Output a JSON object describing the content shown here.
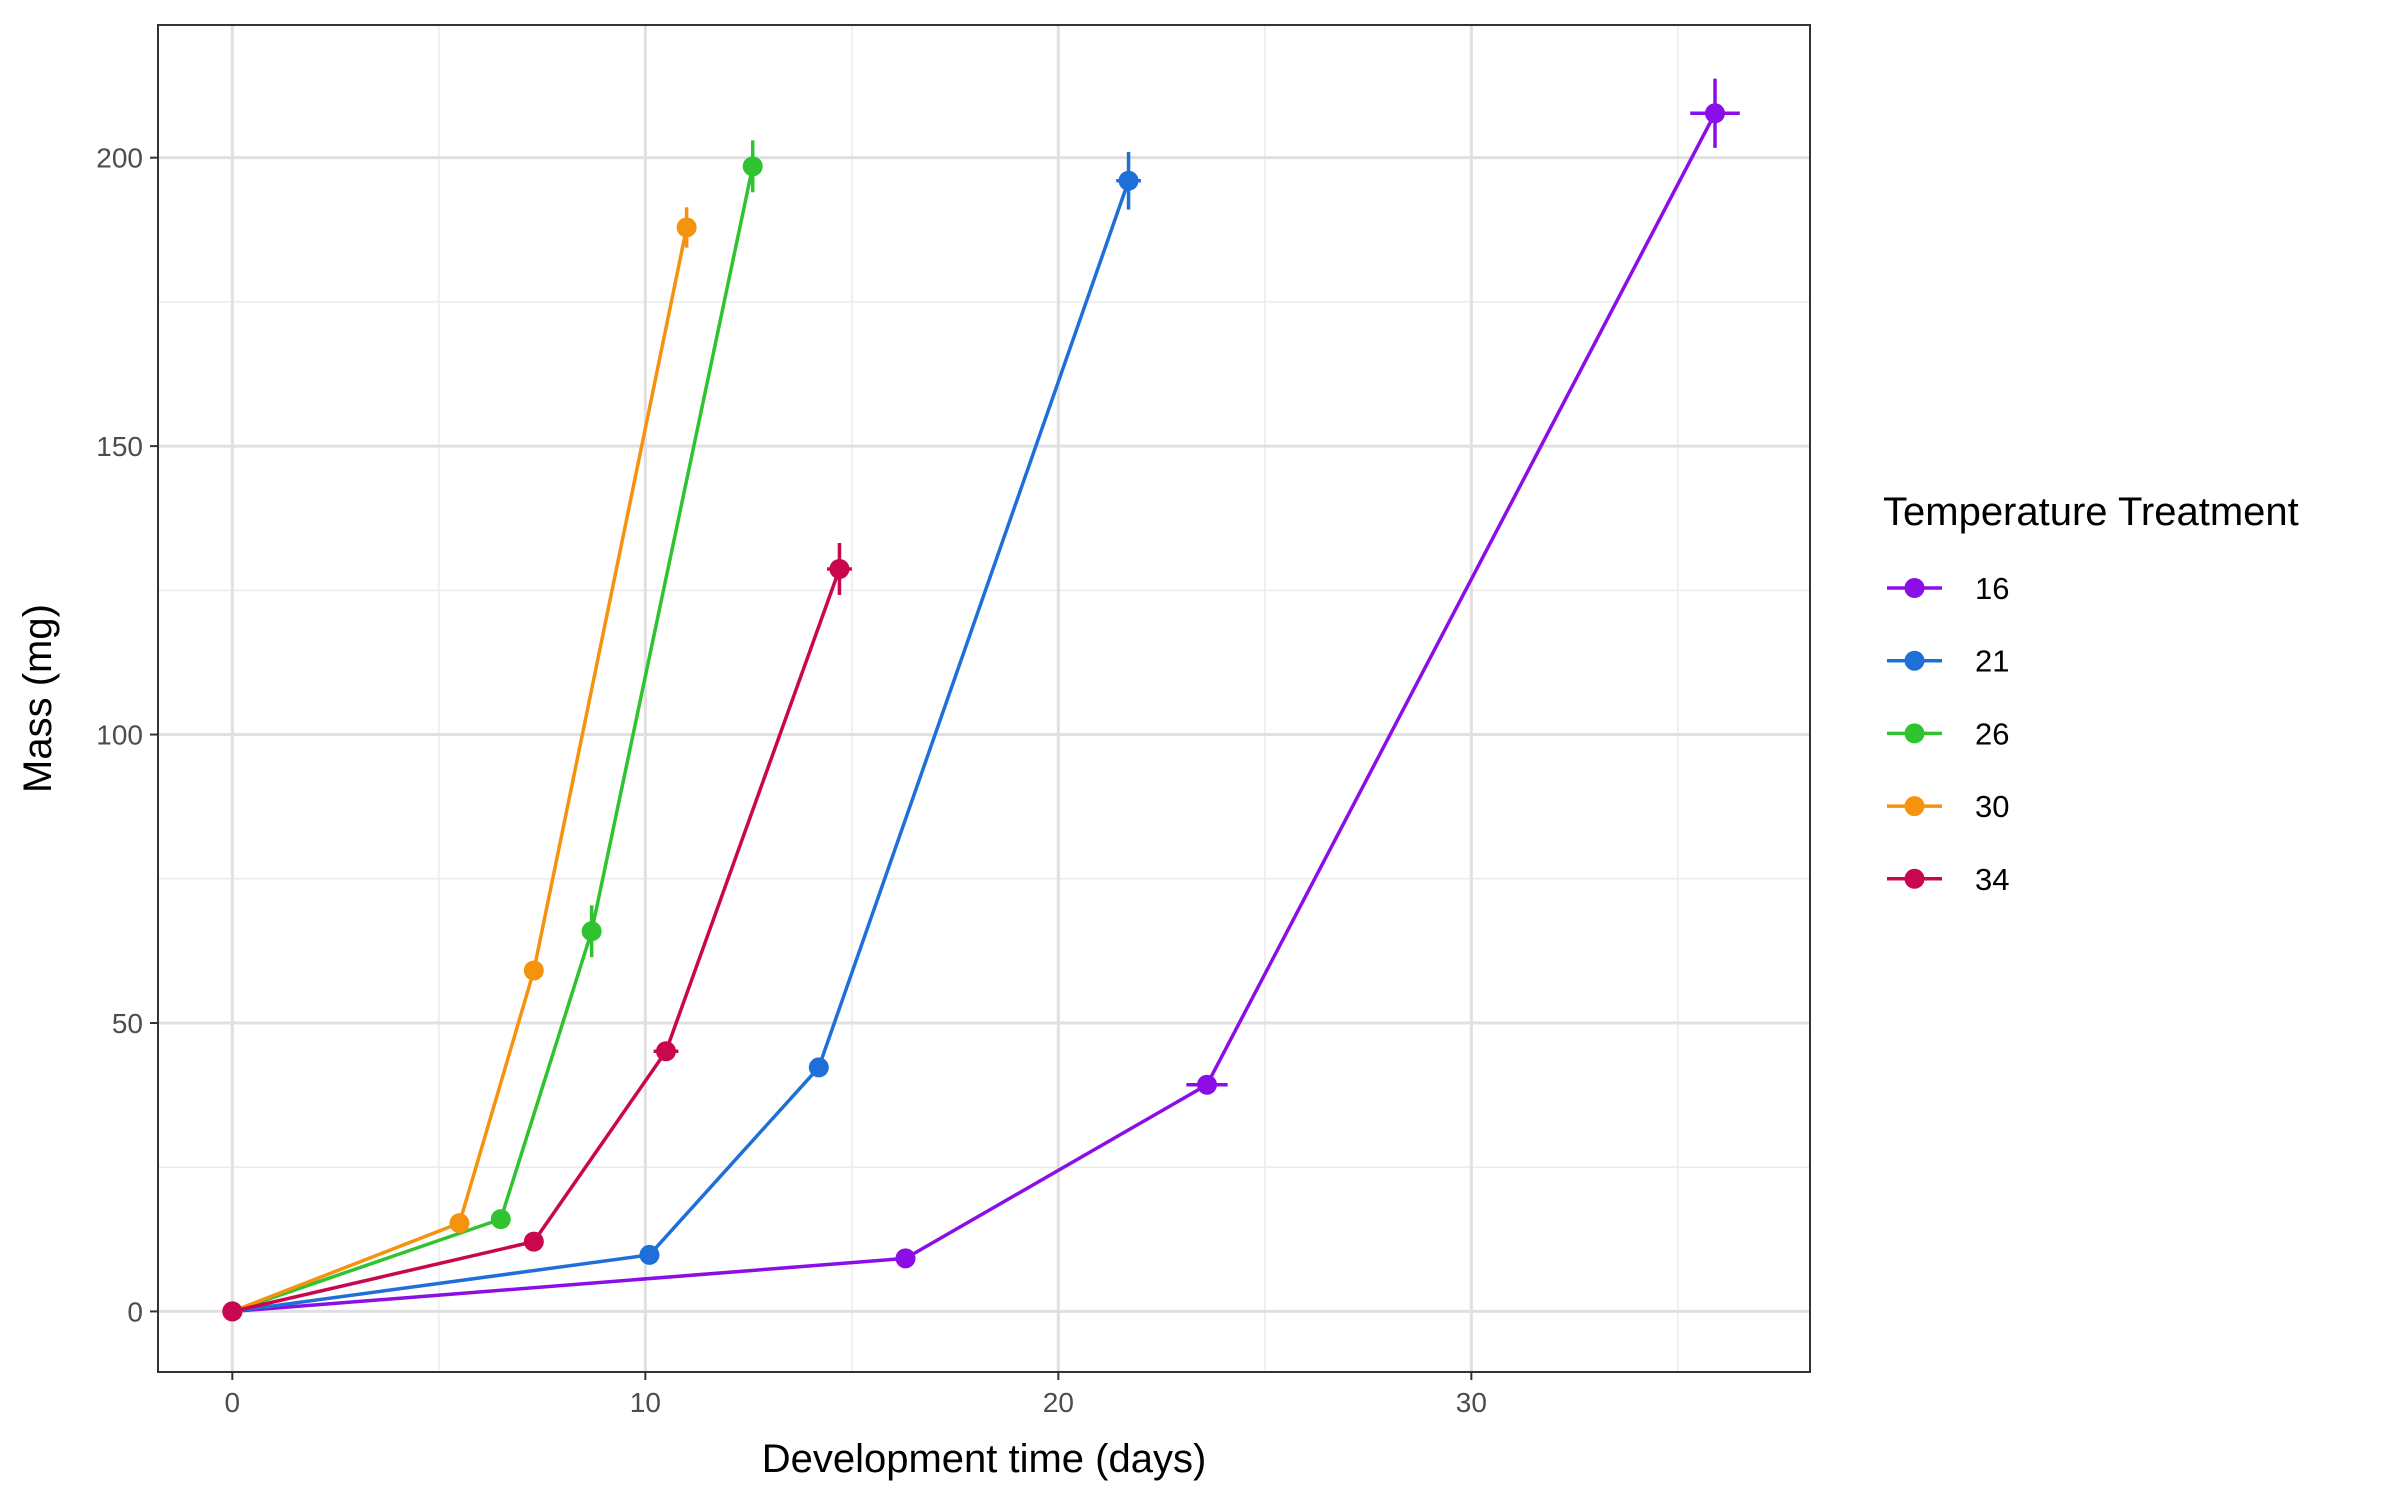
{
  "chart_data": {
    "type": "line",
    "xlabel": "Development time (days)",
    "ylabel": "Mass (mg)",
    "xlim": [
      -1.8,
      38.2
    ],
    "ylim": [
      -10.5,
      223
    ],
    "x_ticks": [
      0,
      10,
      20,
      30
    ],
    "y_ticks": [
      0,
      50,
      100,
      150,
      200
    ],
    "x_minor_ticks": [
      5,
      15,
      25,
      35
    ],
    "y_minor_ticks": [
      25,
      75,
      125,
      175
    ],
    "grid": true,
    "legend": {
      "title": "Temperature Treatment",
      "position": "right"
    },
    "series": [
      {
        "name": "16",
        "color": "#8b0ee6",
        "points": [
          {
            "x": 0,
            "y": 0,
            "xerr": 0,
            "yerr": 0
          },
          {
            "x": 16.3,
            "y": 9.2,
            "xerr": 0.2,
            "yerr": 0.6
          },
          {
            "x": 23.6,
            "y": 39.3,
            "xerr": 0.5,
            "yerr": 1.5
          },
          {
            "x": 35.9,
            "y": 207.7,
            "xerr": 0.6,
            "yerr": 6.0
          }
        ]
      },
      {
        "name": "21",
        "color": "#1f6fd9",
        "points": [
          {
            "x": 0,
            "y": 0,
            "xerr": 0,
            "yerr": 0
          },
          {
            "x": 10.1,
            "y": 9.8,
            "xerr": 0.1,
            "yerr": 0.5
          },
          {
            "x": 14.2,
            "y": 42.3,
            "xerr": 0.2,
            "yerr": 1.2
          },
          {
            "x": 21.7,
            "y": 196.0,
            "xerr": 0.3,
            "yerr": 5.0
          }
        ]
      },
      {
        "name": "26",
        "color": "#2fc42f",
        "points": [
          {
            "x": 0,
            "y": 0,
            "xerr": 0,
            "yerr": 0
          },
          {
            "x": 6.5,
            "y": 16.0,
            "xerr": 0.1,
            "yerr": 0.6
          },
          {
            "x": 8.7,
            "y": 65.9,
            "xerr": 0.1,
            "yerr": 4.5
          },
          {
            "x": 12.6,
            "y": 198.5,
            "xerr": 0.1,
            "yerr": 4.5
          }
        ]
      },
      {
        "name": "30",
        "color": "#f5930e",
        "points": [
          {
            "x": 0,
            "y": 0,
            "xerr": 0,
            "yerr": 0
          },
          {
            "x": 5.5,
            "y": 15.3,
            "xerr": 0.1,
            "yerr": 0.6
          },
          {
            "x": 7.3,
            "y": 59.1,
            "xerr": 0.1,
            "yerr": 1.5
          },
          {
            "x": 11.0,
            "y": 187.9,
            "xerr": 0.1,
            "yerr": 3.5
          }
        ]
      },
      {
        "name": "34",
        "color": "#c9074f",
        "points": [
          {
            "x": 0,
            "y": 0,
            "xerr": 0,
            "yerr": 0
          },
          {
            "x": 7.3,
            "y": 12.1,
            "xerr": 0.1,
            "yerr": 0.6
          },
          {
            "x": 10.5,
            "y": 45.1,
            "xerr": 0.3,
            "yerr": 1.5
          },
          {
            "x": 14.7,
            "y": 128.7,
            "xerr": 0.3,
            "yerr": 4.5
          }
        ]
      }
    ]
  }
}
